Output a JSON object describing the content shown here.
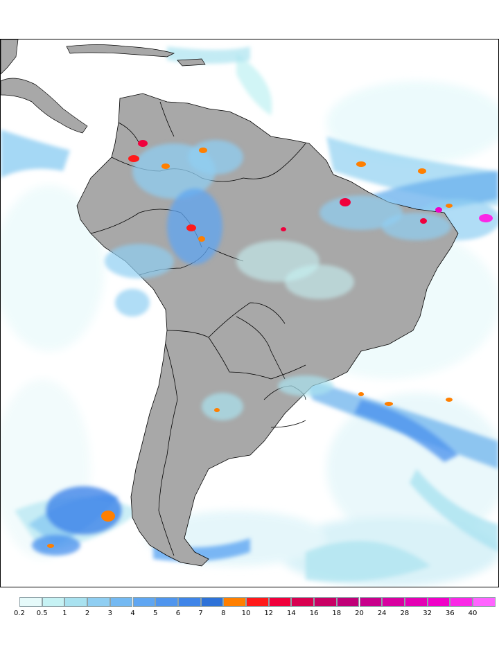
{
  "colorbar": {
    "colors": [
      "#e6fafa",
      "#c6f2f4",
      "#a9e2f0",
      "#8fcef2",
      "#74b9f2",
      "#5fa6f2",
      "#4f95ee",
      "#3f85e8",
      "#2e72d8",
      "#ff7f00",
      "#ff1a1a",
      "#f0003c",
      "#d80050",
      "#c80064",
      "#c00078",
      "#c8008c",
      "#d800a0",
      "#e400b4",
      "#f000c8",
      "#fa28e6",
      "#ff64ff"
    ],
    "ticks": [
      "0.2",
      "0.5",
      "1",
      "2",
      "3",
      "4",
      "5",
      "6",
      "7",
      "8",
      "10",
      "12",
      "14",
      "16",
      "18",
      "20",
      "24",
      "28",
      "32",
      "36",
      "40"
    ]
  },
  "style": {
    "land_color": "#a8a8a8",
    "ocean_color": "#ffffff",
    "border_color": "#000000"
  }
}
